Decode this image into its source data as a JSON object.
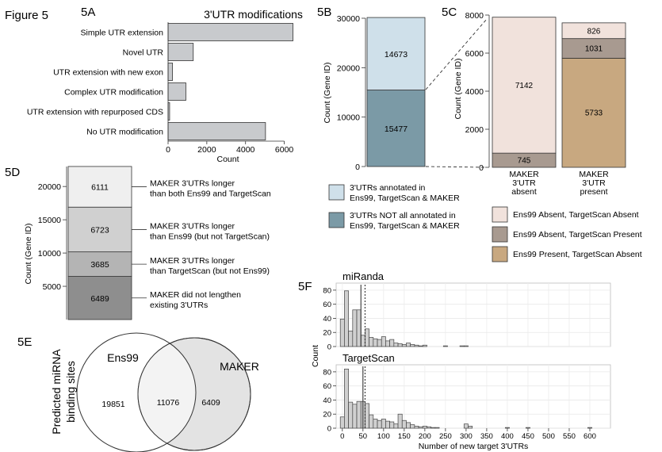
{
  "figure": {
    "label": "Figure 5",
    "panel_labels": {
      "a": "5A",
      "b": "5B",
      "c": "5C",
      "d": "5D",
      "e": "5E",
      "f": "5F"
    }
  },
  "chart_data": [
    {
      "panel": "5A",
      "type": "bar",
      "orientation": "horizontal",
      "title": "3'UTR modifications",
      "xlabel": "Count",
      "categories": [
        "Simple UTR extension",
        "Novel UTR",
        "UTR extension with new exon",
        "Complex UTR modification",
        "UTR extension with repurposed CDS",
        "No UTR modification"
      ],
      "values": [
        6450,
        1300,
        230,
        920,
        80,
        5030
      ],
      "xlim": [
        0,
        7000
      ],
      "xticks": [
        0,
        2000,
        4000,
        6000
      ],
      "colors": {
        "bar": "#c8cacd"
      }
    },
    {
      "panel": "5B",
      "type": "bar",
      "stacked": true,
      "ylabel": "Count (Gene ID)",
      "ylim": [
        0,
        30000
      ],
      "yticks": [
        0,
        10000,
        20000,
        30000
      ],
      "segments": [
        {
          "legend": "3'UTRs NOT all annotated in Ens99, TargetScan & MAKER",
          "value": 15477,
          "color": "#7b9aa6"
        },
        {
          "legend": "3'UTRs annotated in Ens99, TargetScan & MAKER",
          "value": 14673,
          "color": "#cfe0ea"
        }
      ]
    },
    {
      "panel": "5C",
      "type": "bar",
      "stacked": true,
      "ylabel": "Count (Gene ID)",
      "ylim": [
        0,
        8000
      ],
      "yticks": [
        0,
        2000,
        4000,
        6000,
        8000
      ],
      "categories": [
        "MAKER 3'UTR absent",
        "MAKER 3'UTR present"
      ],
      "series": [
        {
          "name": "Ens99 Present, TargetScan Absent",
          "values": [
            0,
            5733
          ],
          "color": "#c8a880"
        },
        {
          "name": "Ens99 Absent,  TargetScan Present",
          "values": [
            745,
            1031
          ],
          "color": "#a89a90"
        },
        {
          "name": "Ens99 Absent,  TargetScan Absent",
          "values": [
            7142,
            826
          ],
          "color": "#f1e2dc"
        }
      ]
    },
    {
      "panel": "5D",
      "type": "bar",
      "stacked": true,
      "ylabel": "Count (Gene ID)",
      "ylim": [
        0,
        23000
      ],
      "yticks": [
        5000,
        10000,
        15000,
        20000
      ],
      "segments": [
        {
          "value": 6489,
          "annotation": [
            "MAKER did not lengthen",
            "existing 3'UTRs"
          ],
          "color": "#8e8e8e"
        },
        {
          "value": 3685,
          "annotation": [
            "MAKER 3'UTRs longer",
            "than TargetScan (but not Ens99)"
          ],
          "color": "#b4b4b4"
        },
        {
          "value": 6723,
          "annotation": [
            "MAKER 3'UTRs longer",
            "than Ens99 (but not TargetScan)"
          ],
          "color": "#d0d0d0"
        },
        {
          "value": 6111,
          "annotation": [
            "MAKER 3'UTRs longer",
            "than both Ens99 and TargetScan"
          ],
          "color": "#efefef"
        }
      ]
    },
    {
      "panel": "5E",
      "type": "venn",
      "ylabel": [
        "Predicted miRNA",
        "binding sites"
      ],
      "sets": [
        "Ens99",
        "MAKER"
      ],
      "values": {
        "ens99_only": 19851,
        "both": 11076,
        "maker_only": 6409
      }
    },
    {
      "panel": "5F",
      "type": "histogram",
      "xlabel": "Number of new target 3'UTRs",
      "ylabel": "Count",
      "bin_width": 10,
      "xlim": [
        -15,
        650
      ],
      "xticks": [
        0,
        50,
        100,
        150,
        200,
        250,
        300,
        350,
        400,
        450,
        500,
        550,
        600
      ],
      "subplots": [
        {
          "name": "miRanda",
          "ylim": [
            0,
            90
          ],
          "yticks": [
            0,
            20,
            40,
            60,
            80
          ],
          "reference_lines": [
            45,
            55
          ],
          "bins": [
            {
              "x": 0,
              "y": 39
            },
            {
              "x": 10,
              "y": 79
            },
            {
              "x": 20,
              "y": 22
            },
            {
              "x": 30,
              "y": 52
            },
            {
              "x": 40,
              "y": 52
            },
            {
              "x": 50,
              "y": 16
            },
            {
              "x": 60,
              "y": 25
            },
            {
              "x": 70,
              "y": 13
            },
            {
              "x": 80,
              "y": 11
            },
            {
              "x": 90,
              "y": 10
            },
            {
              "x": 100,
              "y": 14
            },
            {
              "x": 110,
              "y": 8
            },
            {
              "x": 120,
              "y": 10
            },
            {
              "x": 130,
              "y": 5
            },
            {
              "x": 140,
              "y": 4
            },
            {
              "x": 150,
              "y": 3
            },
            {
              "x": 160,
              "y": 5
            },
            {
              "x": 170,
              "y": 3
            },
            {
              "x": 180,
              "y": 2
            },
            {
              "x": 190,
              "y": 1
            },
            {
              "x": 200,
              "y": 2
            },
            {
              "x": 250,
              "y": 1
            },
            {
              "x": 290,
              "y": 1
            },
            {
              "x": 300,
              "y": 1
            }
          ]
        },
        {
          "name": "TargetScan",
          "ylim": [
            0,
            90
          ],
          "yticks": [
            0,
            20,
            40,
            60,
            80
          ],
          "reference_lines": [
            50,
            55
          ],
          "bins": [
            {
              "x": 0,
              "y": 16
            },
            {
              "x": 10,
              "y": 84
            },
            {
              "x": 20,
              "y": 37
            },
            {
              "x": 30,
              "y": 34
            },
            {
              "x": 40,
              "y": 38
            },
            {
              "x": 50,
              "y": 38
            },
            {
              "x": 60,
              "y": 35
            },
            {
              "x": 70,
              "y": 19
            },
            {
              "x": 80,
              "y": 13
            },
            {
              "x": 90,
              "y": 11
            },
            {
              "x": 100,
              "y": 13
            },
            {
              "x": 110,
              "y": 10
            },
            {
              "x": 120,
              "y": 9
            },
            {
              "x": 130,
              "y": 6
            },
            {
              "x": 140,
              "y": 20
            },
            {
              "x": 150,
              "y": 11
            },
            {
              "x": 160,
              "y": 8
            },
            {
              "x": 170,
              "y": 5
            },
            {
              "x": 180,
              "y": 3
            },
            {
              "x": 190,
              "y": 2
            },
            {
              "x": 200,
              "y": 3
            },
            {
              "x": 210,
              "y": 2
            },
            {
              "x": 220,
              "y": 1
            },
            {
              "x": 230,
              "y": 1
            },
            {
              "x": 300,
              "y": 6
            },
            {
              "x": 310,
              "y": 3
            },
            {
              "x": 400,
              "y": 1
            },
            {
              "x": 450,
              "y": 1
            },
            {
              "x": 600,
              "y": 1
            }
          ]
        }
      ]
    }
  ]
}
